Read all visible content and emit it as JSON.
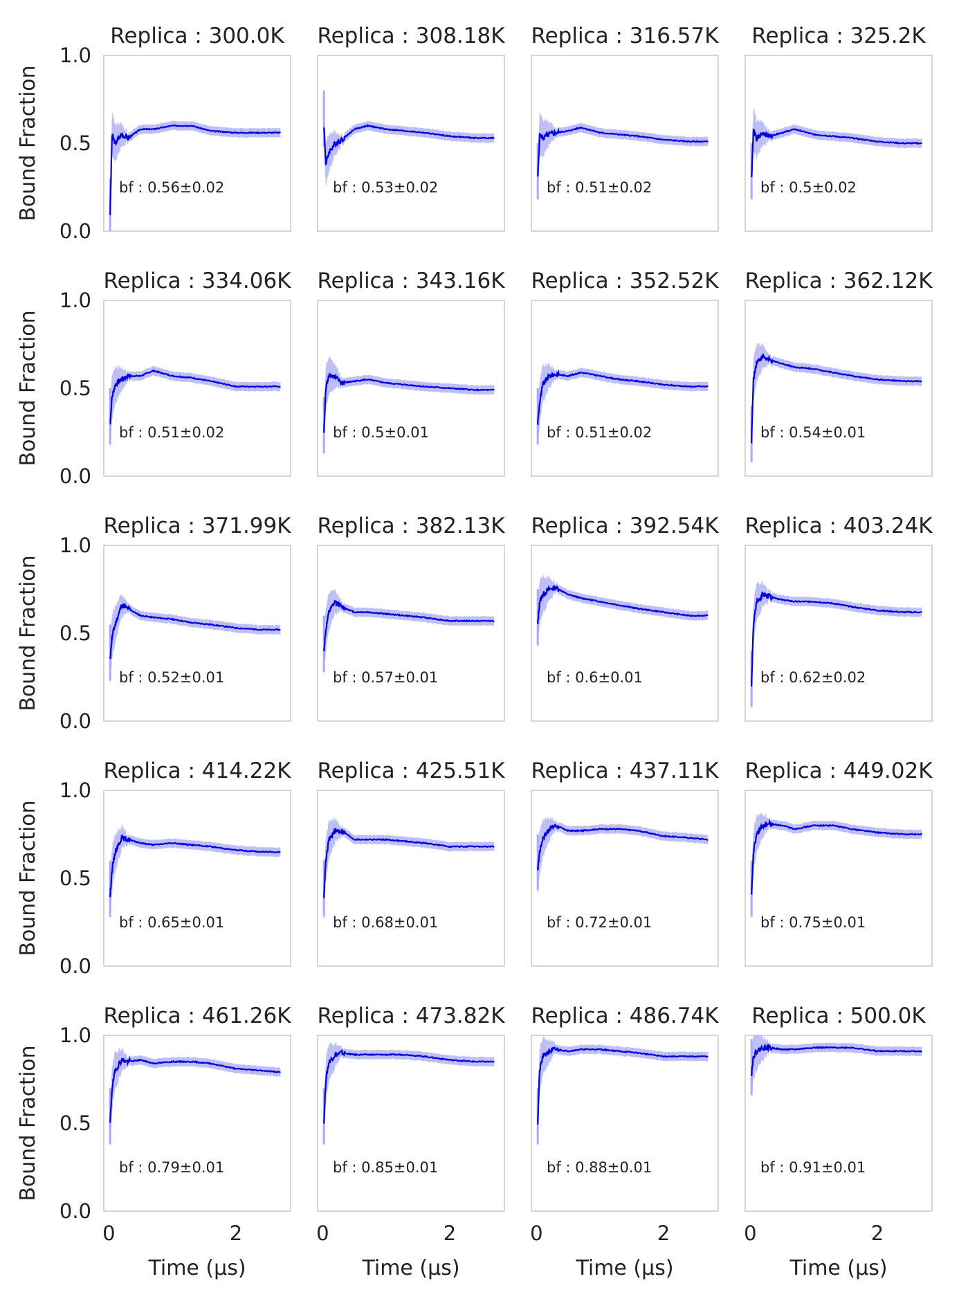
{
  "chart_data": {
    "type": "line",
    "layout": "grid",
    "rows": 5,
    "cols": 4,
    "shared_xlim": [
      -0.08,
      2.86
    ],
    "shared_ylim": [
      0.0,
      1.0
    ],
    "x_ticks": [
      0,
      2
    ],
    "y_ticks": [
      "0.0",
      "0.5",
      "1.0"
    ],
    "xlabel": "Time (μs)",
    "ylabel": "Bound Fraction",
    "grid": false,
    "line_color": "#0000dd",
    "band_color": "#aaaaf5",
    "panels": [
      {
        "title": "Replica : 300.0K",
        "annotation": "bf : 0.56±0.02",
        "x": [
          0.02,
          0.05,
          0.1,
          0.2,
          0.3,
          0.5,
          0.7,
          1.0,
          1.3,
          1.6,
          2.0,
          2.4,
          2.7
        ],
        "y": [
          0.1,
          0.55,
          0.5,
          0.55,
          0.53,
          0.58,
          0.58,
          0.6,
          0.6,
          0.57,
          0.56,
          0.56,
          0.56
        ]
      },
      {
        "title": "Replica : 308.18K",
        "annotation": "bf : 0.53±0.02",
        "x": [
          0.02,
          0.05,
          0.1,
          0.2,
          0.3,
          0.5,
          0.7,
          1.0,
          1.3,
          1.6,
          2.0,
          2.4,
          2.7
        ],
        "y": [
          0.6,
          0.38,
          0.45,
          0.5,
          0.52,
          0.58,
          0.6,
          0.58,
          0.57,
          0.56,
          0.54,
          0.53,
          0.53
        ]
      },
      {
        "title": "Replica : 316.57K",
        "annotation": "bf : 0.51±0.02",
        "x": [
          0.02,
          0.05,
          0.1,
          0.2,
          0.3,
          0.5,
          0.7,
          1.0,
          1.3,
          1.6,
          2.0,
          2.4,
          2.7
        ],
        "y": [
          0.3,
          0.55,
          0.53,
          0.55,
          0.56,
          0.57,
          0.59,
          0.56,
          0.55,
          0.54,
          0.52,
          0.51,
          0.51
        ]
      },
      {
        "title": "Replica : 325.2K",
        "annotation": "bf : 0.5±0.02",
        "x": [
          0.02,
          0.05,
          0.1,
          0.2,
          0.3,
          0.5,
          0.7,
          1.0,
          1.3,
          1.6,
          2.0,
          2.4,
          2.7
        ],
        "y": [
          0.3,
          0.58,
          0.52,
          0.56,
          0.54,
          0.56,
          0.58,
          0.55,
          0.54,
          0.53,
          0.51,
          0.5,
          0.5
        ]
      },
      {
        "title": "Replica : 334.06K",
        "annotation": "bf : 0.51±0.02",
        "x": [
          0.02,
          0.05,
          0.1,
          0.2,
          0.3,
          0.5,
          0.7,
          1.0,
          1.3,
          1.6,
          2.0,
          2.4,
          2.7
        ],
        "y": [
          0.3,
          0.45,
          0.52,
          0.55,
          0.57,
          0.57,
          0.6,
          0.57,
          0.56,
          0.54,
          0.51,
          0.51,
          0.51
        ]
      },
      {
        "title": "Replica : 343.16K",
        "annotation": "bf : 0.5±0.01",
        "x": [
          0.02,
          0.05,
          0.1,
          0.2,
          0.3,
          0.5,
          0.7,
          1.0,
          1.3,
          1.6,
          2.0,
          2.4,
          2.7
        ],
        "y": [
          0.25,
          0.5,
          0.58,
          0.56,
          0.53,
          0.54,
          0.55,
          0.53,
          0.52,
          0.51,
          0.5,
          0.49,
          0.49
        ]
      },
      {
        "title": "Replica : 352.52K",
        "annotation": "bf : 0.51±0.02",
        "x": [
          0.02,
          0.05,
          0.1,
          0.2,
          0.3,
          0.5,
          0.7,
          1.0,
          1.3,
          1.6,
          2.0,
          2.4,
          2.7
        ],
        "y": [
          0.3,
          0.42,
          0.52,
          0.57,
          0.58,
          0.57,
          0.59,
          0.57,
          0.55,
          0.54,
          0.52,
          0.51,
          0.51
        ]
      },
      {
        "title": "Replica : 362.12K",
        "annotation": "bf : 0.54±0.01",
        "x": [
          0.02,
          0.05,
          0.1,
          0.2,
          0.3,
          0.5,
          0.7,
          1.0,
          1.3,
          1.6,
          2.0,
          2.4,
          2.7
        ],
        "y": [
          0.2,
          0.55,
          0.65,
          0.68,
          0.66,
          0.64,
          0.62,
          0.61,
          0.59,
          0.57,
          0.55,
          0.54,
          0.54
        ]
      },
      {
        "title": "Replica : 371.99K",
        "annotation": "bf : 0.52±0.01",
        "x": [
          0.02,
          0.05,
          0.1,
          0.2,
          0.3,
          0.5,
          0.7,
          1.0,
          1.3,
          1.6,
          2.0,
          2.4,
          2.7
        ],
        "y": [
          0.35,
          0.48,
          0.55,
          0.66,
          0.64,
          0.6,
          0.59,
          0.58,
          0.56,
          0.55,
          0.53,
          0.52,
          0.52
        ]
      },
      {
        "title": "Replica : 382.13K",
        "annotation": "bf : 0.57±0.01",
        "x": [
          0.02,
          0.05,
          0.1,
          0.2,
          0.3,
          0.5,
          0.7,
          1.0,
          1.3,
          1.6,
          2.0,
          2.4,
          2.7
        ],
        "y": [
          0.4,
          0.52,
          0.62,
          0.68,
          0.65,
          0.62,
          0.62,
          0.61,
          0.6,
          0.59,
          0.57,
          0.57,
          0.57
        ]
      },
      {
        "title": "Replica : 392.54K",
        "annotation": "bf : 0.6±0.01",
        "x": [
          0.02,
          0.05,
          0.1,
          0.2,
          0.3,
          0.5,
          0.7,
          1.0,
          1.3,
          1.6,
          2.0,
          2.4,
          2.7
        ],
        "y": [
          0.55,
          0.68,
          0.72,
          0.75,
          0.76,
          0.72,
          0.7,
          0.68,
          0.66,
          0.64,
          0.62,
          0.6,
          0.6
        ]
      },
      {
        "title": "Replica : 403.24K",
        "annotation": "bf : 0.62±0.02",
        "x": [
          0.02,
          0.05,
          0.1,
          0.2,
          0.3,
          0.5,
          0.7,
          1.0,
          1.3,
          1.6,
          2.0,
          2.4,
          2.7
        ],
        "y": [
          0.2,
          0.55,
          0.68,
          0.72,
          0.71,
          0.69,
          0.68,
          0.68,
          0.67,
          0.65,
          0.63,
          0.62,
          0.62
        ]
      },
      {
        "title": "Replica : 414.22K",
        "annotation": "bf : 0.65±0.01",
        "x": [
          0.02,
          0.05,
          0.1,
          0.2,
          0.3,
          0.5,
          0.7,
          1.0,
          1.3,
          1.6,
          2.0,
          2.4,
          2.7
        ],
        "y": [
          0.4,
          0.55,
          0.65,
          0.73,
          0.72,
          0.7,
          0.69,
          0.7,
          0.69,
          0.68,
          0.66,
          0.65,
          0.65
        ]
      },
      {
        "title": "Replica : 425.51K",
        "annotation": "bf : 0.68±0.01",
        "x": [
          0.02,
          0.05,
          0.1,
          0.2,
          0.3,
          0.5,
          0.7,
          1.0,
          1.3,
          1.6,
          2.0,
          2.4,
          2.7
        ],
        "y": [
          0.4,
          0.6,
          0.72,
          0.77,
          0.77,
          0.72,
          0.72,
          0.72,
          0.71,
          0.7,
          0.68,
          0.68,
          0.68
        ]
      },
      {
        "title": "Replica : 437.11K",
        "annotation": "bf : 0.72±0.01",
        "x": [
          0.02,
          0.05,
          0.1,
          0.2,
          0.3,
          0.5,
          0.7,
          1.0,
          1.3,
          1.6,
          2.0,
          2.4,
          2.7
        ],
        "y": [
          0.55,
          0.65,
          0.73,
          0.78,
          0.8,
          0.77,
          0.77,
          0.78,
          0.78,
          0.77,
          0.74,
          0.73,
          0.72
        ]
      },
      {
        "title": "Replica : 449.02K",
        "annotation": "bf : 0.75±0.01",
        "x": [
          0.02,
          0.05,
          0.1,
          0.2,
          0.3,
          0.5,
          0.7,
          1.0,
          1.3,
          1.6,
          2.0,
          2.4,
          2.7
        ],
        "y": [
          0.4,
          0.65,
          0.75,
          0.8,
          0.81,
          0.8,
          0.78,
          0.8,
          0.8,
          0.78,
          0.76,
          0.75,
          0.75
        ]
      },
      {
        "title": "Replica : 461.26K",
        "annotation": "bf : 0.79±0.01",
        "x": [
          0.02,
          0.05,
          0.1,
          0.2,
          0.3,
          0.5,
          0.7,
          1.0,
          1.3,
          1.6,
          2.0,
          2.4,
          2.7
        ],
        "y": [
          0.5,
          0.7,
          0.8,
          0.86,
          0.85,
          0.86,
          0.84,
          0.85,
          0.85,
          0.84,
          0.81,
          0.8,
          0.79
        ]
      },
      {
        "title": "Replica : 473.82K",
        "annotation": "bf : 0.85±0.01",
        "x": [
          0.02,
          0.05,
          0.1,
          0.2,
          0.3,
          0.5,
          0.7,
          1.0,
          1.3,
          1.6,
          2.0,
          2.4,
          2.7
        ],
        "y": [
          0.5,
          0.75,
          0.85,
          0.89,
          0.9,
          0.89,
          0.89,
          0.89,
          0.89,
          0.88,
          0.86,
          0.85,
          0.85
        ]
      },
      {
        "title": "Replica : 486.74K",
        "annotation": "bf : 0.88±0.01",
        "x": [
          0.02,
          0.05,
          0.1,
          0.2,
          0.3,
          0.5,
          0.7,
          1.0,
          1.3,
          1.6,
          2.0,
          2.4,
          2.7
        ],
        "y": [
          0.5,
          0.8,
          0.88,
          0.91,
          0.92,
          0.91,
          0.92,
          0.92,
          0.91,
          0.9,
          0.88,
          0.88,
          0.88
        ]
      },
      {
        "title": "Replica : 500.0K",
        "annotation": "bf : 0.91±0.01",
        "x": [
          0.02,
          0.05,
          0.1,
          0.2,
          0.3,
          0.5,
          0.7,
          1.0,
          1.3,
          1.6,
          2.0,
          2.4,
          2.7
        ],
        "y": [
          0.78,
          0.88,
          0.91,
          0.93,
          0.93,
          0.92,
          0.92,
          0.93,
          0.93,
          0.93,
          0.91,
          0.91,
          0.91
        ]
      }
    ]
  }
}
